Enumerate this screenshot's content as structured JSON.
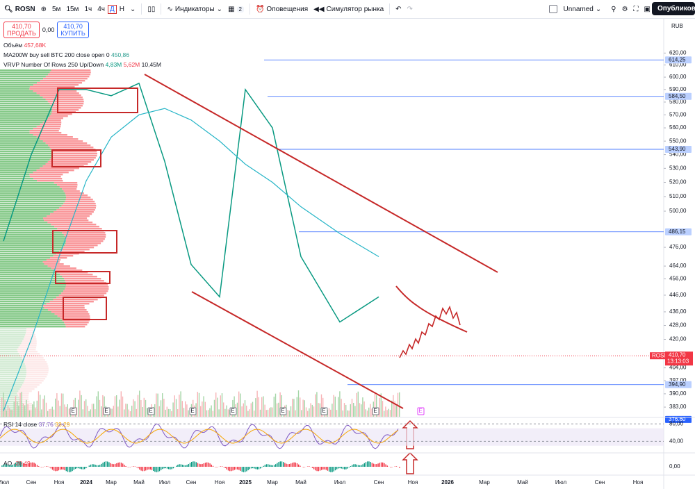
{
  "toolbar": {
    "symbol": "ROSN",
    "intervals": [
      "5м",
      "15м",
      "1ч",
      "4ч",
      "Д",
      "Н"
    ],
    "indicators": "Индикаторы",
    "layouts_count": "2",
    "alerts": "Оповещения",
    "replay": "Симулятор рынка",
    "layout_name": "Unnamed",
    "publish": "Опубликовать"
  },
  "trade": {
    "sell_price": "410,70",
    "sell": "ПРОДАТЬ",
    "spread": "0,00",
    "buy_price": "410,70",
    "buy": "КУПИТЬ"
  },
  "legend": [
    {
      "name": "Объём",
      "values": [
        "457,68K"
      ]
    },
    {
      "name": "MA200W buy sell BTC 200 close open 0",
      "values": [
        "450,86"
      ]
    },
    {
      "name": "VRVP Number Of Rows 250 Up/Down",
      "values": [
        "4,83M",
        "5,62M",
        "10,45M"
      ]
    }
  ],
  "chart_data": {
    "type": "line",
    "currency": "RUB",
    "log": true,
    "categories": [
      "Июл",
      "Сен",
      "Ноя",
      "2024",
      "Мар",
      "Май",
      "Июл",
      "Сен",
      "Ноя",
      "2025",
      "Мар",
      "Май",
      "Июл",
      "Сен",
      "Ноя",
      "2026",
      "Мар",
      "Май",
      "Июл",
      "Сен",
      "Ноя"
    ],
    "series": [
      {
        "name": "ROSN",
        "color": "#089981",
        "values": [
          480,
          540,
          590,
          590,
          585,
          595,
          535,
          465,
          445,
          590,
          560,
          470,
          430,
          445,
          null,
          null,
          null,
          null,
          null,
          null,
          null
        ]
      },
      {
        "name": "MA200W",
        "color": "#26b5c7",
        "values": [
          381,
          420,
          470,
          521,
          553,
          570,
          575,
          566,
          550,
          533,
          520,
          503,
          485,
          470,
          null,
          null,
          null,
          null,
          null,
          null,
          null
        ]
      }
    ],
    "ylim": [
      378,
      649
    ],
    "yticks": [
      {
        "value": 620,
        "label": "620,00"
      },
      {
        "value": 610,
        "label": "610,00"
      },
      {
        "value": 600,
        "label": "600,00"
      },
      {
        "value": 590,
        "label": "590,00"
      },
      {
        "value": 580,
        "label": "580,00"
      },
      {
        "value": 570,
        "label": "570,00"
      },
      {
        "value": 560,
        "label": "560,00"
      },
      {
        "value": 550,
        "label": "550,00"
      },
      {
        "value": 540,
        "label": "540,00"
      },
      {
        "value": 530,
        "label": "530,00"
      },
      {
        "value": 520,
        "label": "520,00"
      },
      {
        "value": 510,
        "label": "510,00"
      },
      {
        "value": 500,
        "label": "500,00"
      },
      {
        "value": 476,
        "label": "476,00"
      },
      {
        "value": 464,
        "label": "464,00"
      },
      {
        "value": 456,
        "label": "456,00"
      },
      {
        "value": 446,
        "label": "446,00"
      },
      {
        "value": 436,
        "label": "436,00"
      },
      {
        "value": 428,
        "label": "428,00"
      },
      {
        "value": 420,
        "label": "420,00"
      },
      {
        "value": 404,
        "label": "404,00"
      },
      {
        "value": 397,
        "label": "397,00"
      },
      {
        "value": 390,
        "label": "390,00"
      },
      {
        "value": 383,
        "label": "383,00"
      }
    ],
    "levels": [
      {
        "value": 614.25,
        "label": "614,25"
      },
      {
        "value": 584.5,
        "label": "584,50"
      },
      {
        "value": 543.9,
        "label": "543,90"
      },
      {
        "value": 486.15,
        "label": "486,15"
      },
      {
        "value": 394.9,
        "label": "394,90"
      },
      {
        "value": 376.6,
        "label": "376,60"
      }
    ],
    "last_price": {
      "value": 410.7,
      "label": "410,70",
      "symbol": "ROSN",
      "countdown": "13:13:03"
    },
    "earnings_marker": "E"
  },
  "rsi": {
    "title": "RSI 14 close",
    "values": [
      "37,76",
      "33,29"
    ],
    "yticks": [
      {
        "value": 80,
        "label": "80,00"
      },
      {
        "value": 40,
        "label": "40,00"
      }
    ]
  },
  "ao": {
    "title": "AO",
    "value": "-28,49",
    "yticks": [
      {
        "value": 0,
        "label": "0,00"
      }
    ]
  }
}
